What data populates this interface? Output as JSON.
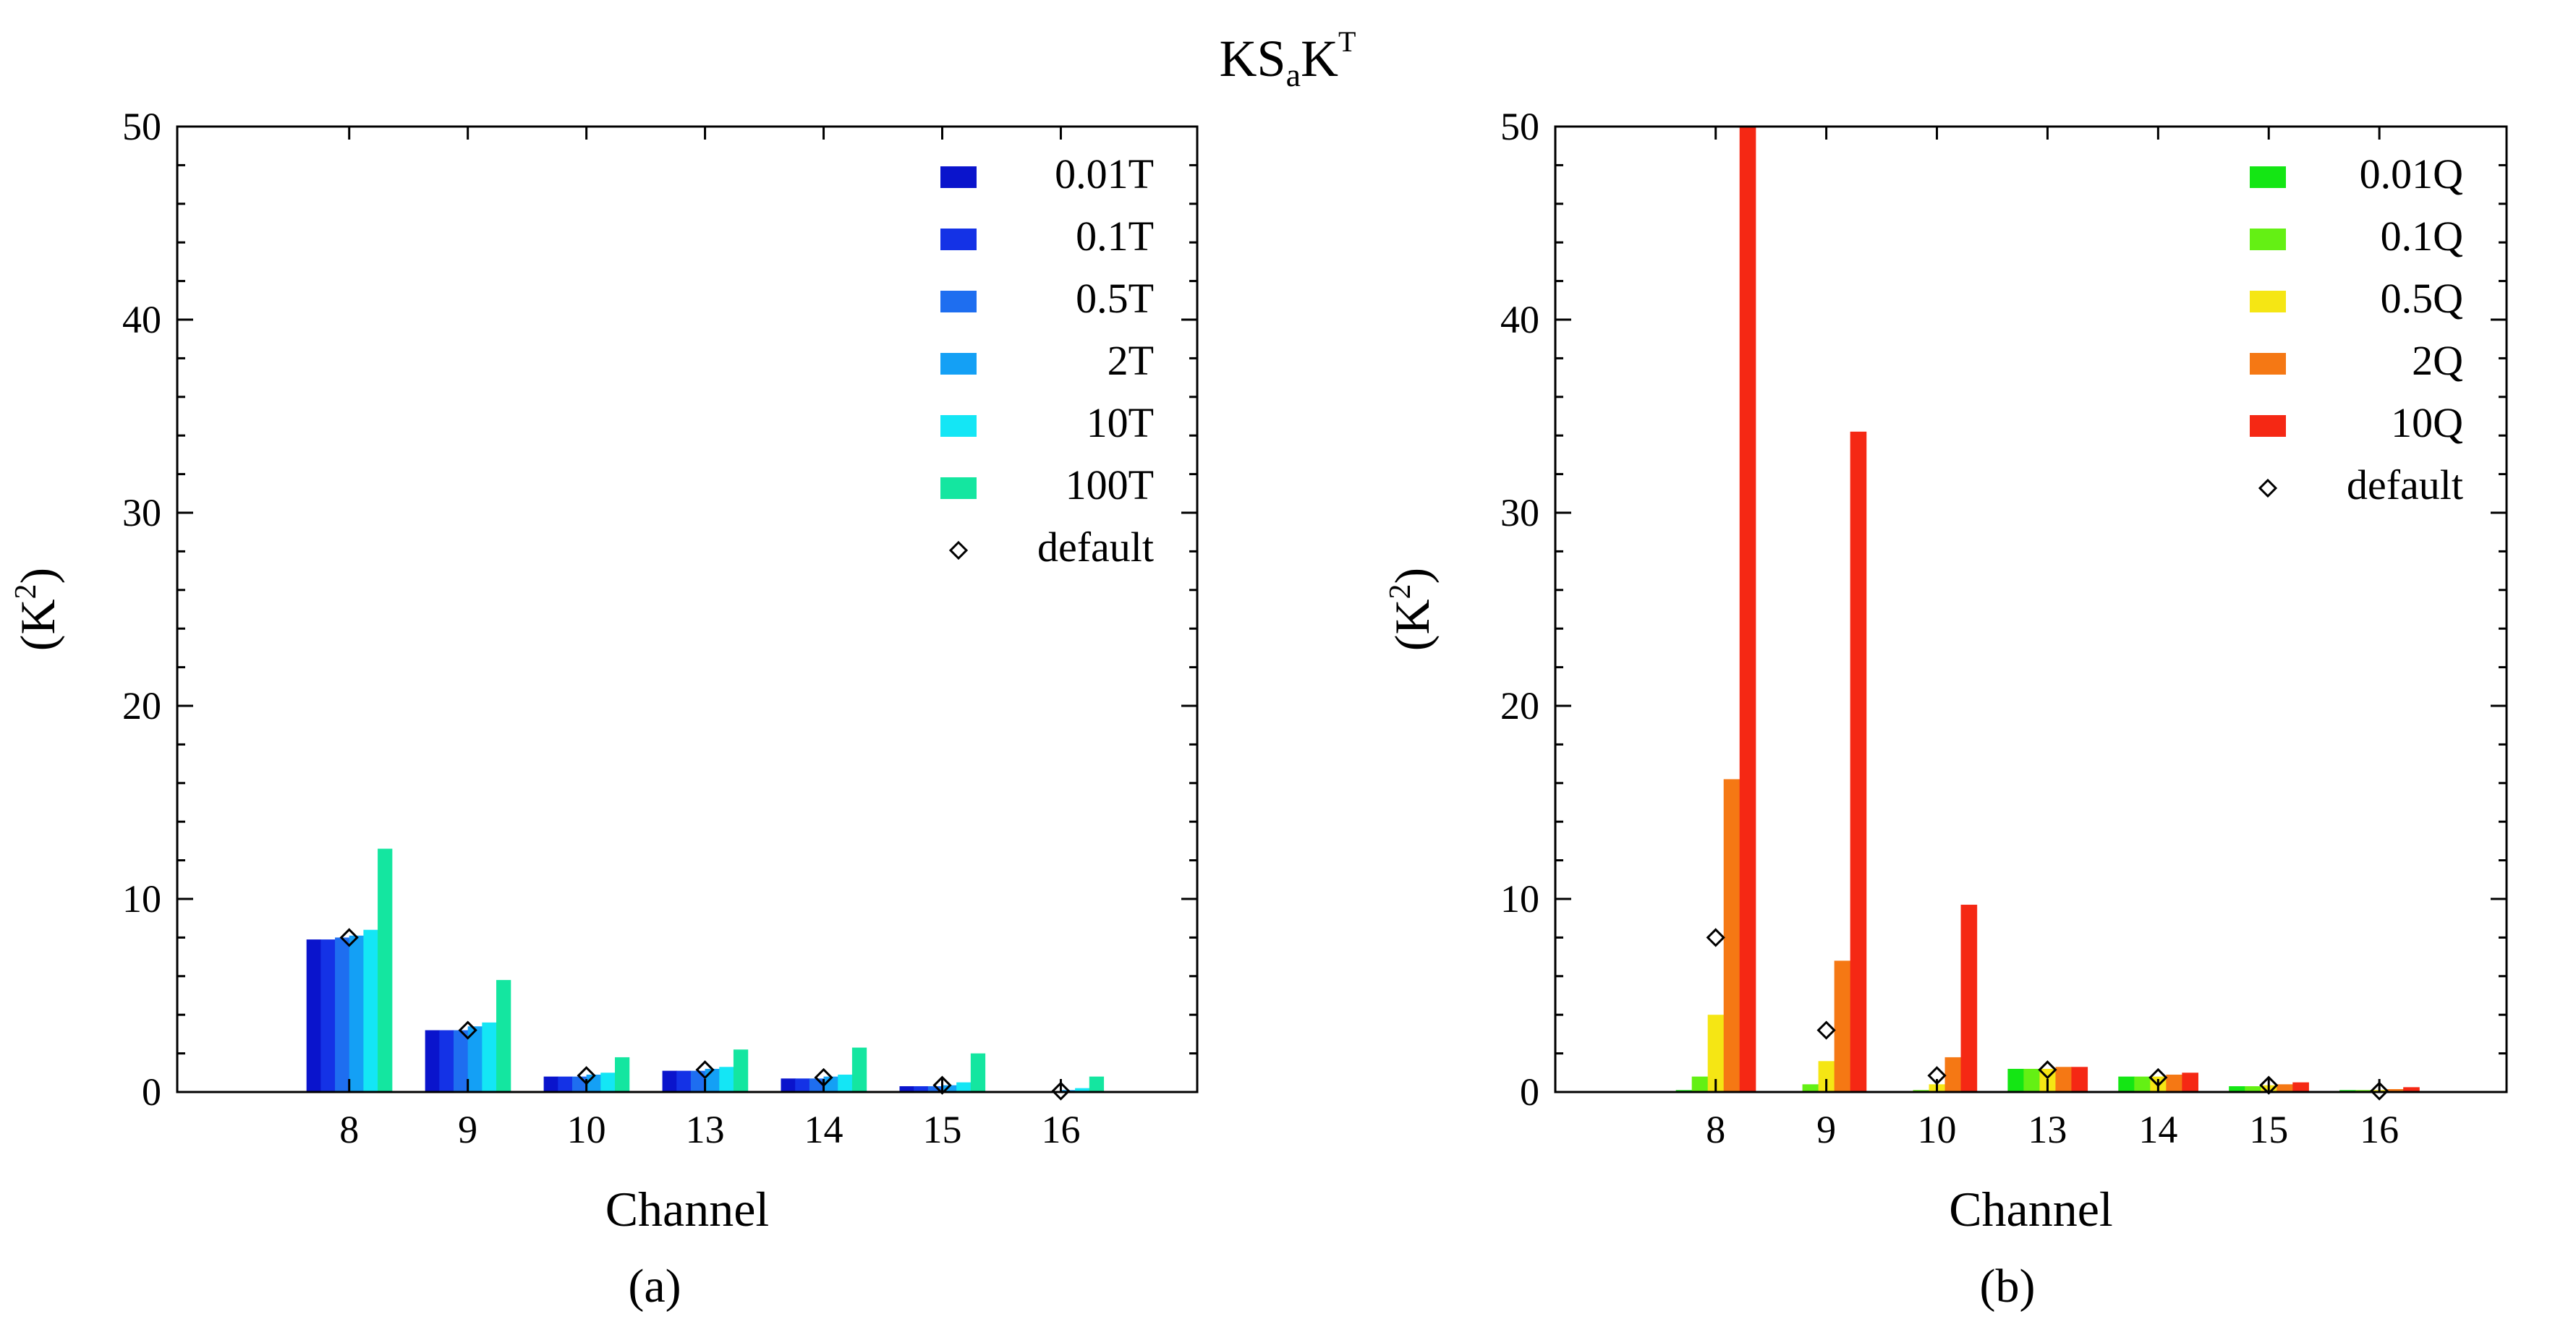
{
  "figure": {
    "title_main": "KS",
    "title_sub": "a",
    "title_tail": "K",
    "title_sup": "T"
  },
  "chart_data": [
    {
      "type": "bar",
      "panel_label": "(a)",
      "categories": [
        "8",
        "9",
        "10",
        "13",
        "14",
        "15",
        "16"
      ],
      "xlabel": "Channel",
      "ylabel": "(K",
      "ylabel_sup": "2",
      "ylabel_close": ")",
      "ylim": [
        0,
        50
      ],
      "yticks": [
        0,
        10,
        20,
        30,
        40,
        50
      ],
      "legend_position": "top-right",
      "series": [
        {
          "name": "0.01T",
          "color": "#0a14cc",
          "values": [
            7.9,
            3.2,
            0.8,
            1.1,
            0.7,
            0.3,
            0.05
          ]
        },
        {
          "name": "0.1T",
          "color": "#1432e6",
          "values": [
            7.9,
            3.2,
            0.8,
            1.1,
            0.7,
            0.3,
            0.05
          ]
        },
        {
          "name": "0.5T",
          "color": "#1e6ef0",
          "values": [
            8.0,
            3.2,
            0.8,
            1.1,
            0.7,
            0.3,
            0.05
          ]
        },
        {
          "name": "2T",
          "color": "#14a0f5",
          "values": [
            8.1,
            3.4,
            0.9,
            1.2,
            0.8,
            0.35,
            0.1
          ]
        },
        {
          "name": "10T",
          "color": "#14e6f5",
          "values": [
            8.4,
            3.6,
            1.0,
            1.3,
            0.9,
            0.5,
            0.2
          ]
        },
        {
          "name": "100T",
          "color": "#14e6a0",
          "values": [
            12.6,
            5.8,
            1.8,
            2.2,
            2.3,
            2.0,
            0.8
          ]
        }
      ],
      "default_marker": {
        "name": "default",
        "values": [
          8.0,
          3.2,
          0.85,
          1.15,
          0.75,
          0.35,
          0.05
        ]
      }
    },
    {
      "type": "bar",
      "panel_label": "(b)",
      "categories": [
        "8",
        "9",
        "10",
        "13",
        "14",
        "15",
        "16"
      ],
      "xlabel": "Channel",
      "ylabel": "(K",
      "ylabel_sup": "2",
      "ylabel_close": ")",
      "ylim": [
        0,
        50
      ],
      "yticks": [
        0,
        10,
        20,
        30,
        40,
        50
      ],
      "legend_position": "top-right",
      "series": [
        {
          "name": "0.01Q",
          "color": "#14e614",
          "values": [
            0.1,
            0.05,
            0.02,
            1.2,
            0.8,
            0.3,
            0.1
          ]
        },
        {
          "name": "0.1Q",
          "color": "#64f014",
          "values": [
            0.8,
            0.4,
            0.1,
            1.2,
            0.8,
            0.3,
            0.1
          ]
        },
        {
          "name": "0.5Q",
          "color": "#f5e614",
          "values": [
            4.0,
            1.6,
            0.4,
            1.2,
            0.8,
            0.35,
            0.1
          ]
        },
        {
          "name": "2Q",
          "color": "#f57814",
          "values": [
            16.2,
            6.8,
            1.8,
            1.3,
            0.9,
            0.4,
            0.15
          ]
        },
        {
          "name": "10Q",
          "color": "#f52814",
          "values": [
            52.0,
            34.2,
            9.7,
            1.3,
            1.0,
            0.5,
            0.25
          ]
        }
      ],
      "default_marker": {
        "name": "default",
        "values": [
          8.0,
          3.2,
          0.85,
          1.15,
          0.75,
          0.35,
          0.05
        ]
      }
    }
  ]
}
